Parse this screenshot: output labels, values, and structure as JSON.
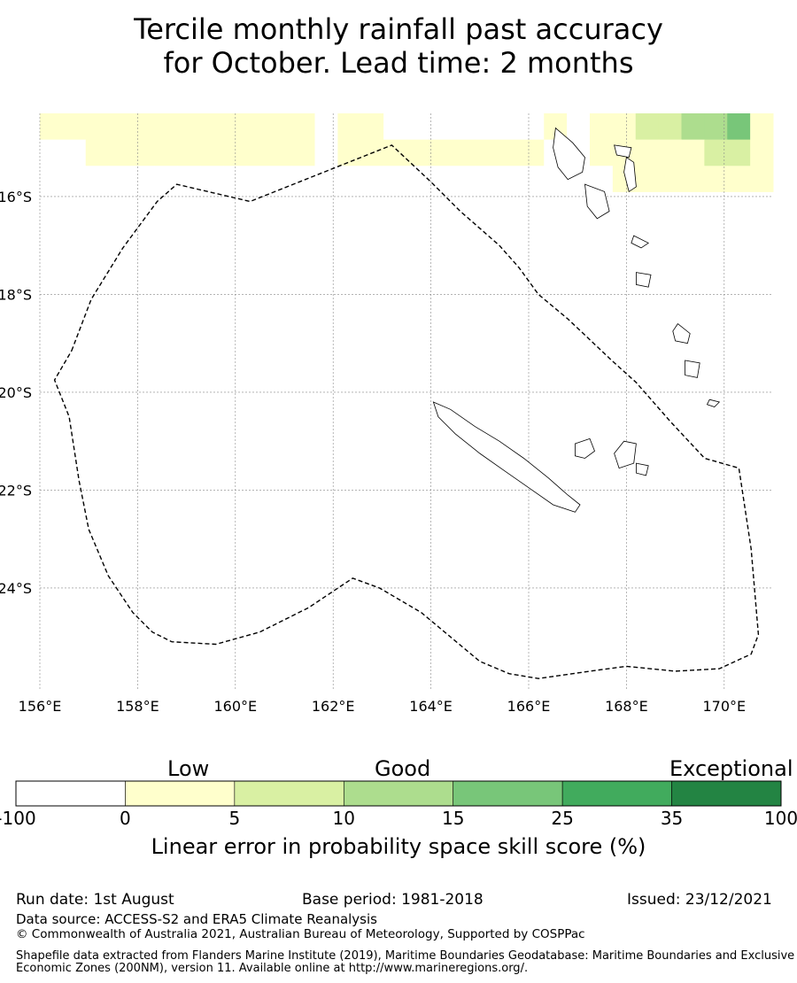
{
  "title": {
    "line1": "Tercile monthly rainfall past accuracy",
    "line2": "for October. Lead time: 2 months"
  },
  "map": {
    "lon_ticks": [
      "156°E",
      "158°E",
      "160°E",
      "162°E",
      "164°E",
      "166°E",
      "168°E",
      "170°E"
    ],
    "lat_ticks": [
      "16°S",
      "18°S",
      "20°S",
      "22°S",
      "24°S"
    ],
    "lon_range": [
      156,
      171
    ],
    "lat_range": [
      -14.3,
      -26.1
    ],
    "gridlines": true,
    "boundary": "dashed black maritime zone outline",
    "grid_code_legend": "0 = below 0, 1 = 0–5, 2 = 5–10, 3 = 10–15, 4 = 15–25",
    "skill_grid": [
      "11111111111101100000001011223341",
      "00111111111101111111110011111221",
      "00000000000000000000000001111111",
      "00000000000000000000000000000000",
      "00000000000000000000000000000000",
      "00000000000000000000000000000000",
      "00000000000000000000000000000000",
      "00000000000000000000000000000000",
      "00000000000000000000000000000000",
      "00000000000000000000000000000000",
      "00000000000000000000000000000000",
      "00000000000000000000000000000000",
      "00000000000000000000000000000000",
      "00000000000000000000000000000000",
      "00000000000000000000000000000000",
      "00000000000000000000000000000000",
      "00000000000000000000000000000000",
      "00000000000000000000000000000000",
      "00000000000000000000000000000000",
      "00000000000000000000000000000000",
      "00000000000000000000000000000000",
      "00000000000000000000000000000000"
    ]
  },
  "colorbar": {
    "categories": [
      "Low",
      "Good",
      "Exceptional"
    ],
    "tick_labels": [
      "-100",
      "0",
      "5",
      "10",
      "15",
      "25",
      "35",
      "100"
    ],
    "colors": [
      "#ffffff",
      "#ffffcc",
      "#d9f0a3",
      "#addd8e",
      "#78c679",
      "#41ab5d",
      "#238443"
    ],
    "label": "Linear error in probability space skill score (%)"
  },
  "footer": {
    "run_date": "Run date: 1st August",
    "base_period": "Base period: 1981-2018",
    "issued": "Issued: 23/12/2021",
    "data_source": "Data source: ACCESS-S2 and ERA5 Climate Reanalysis",
    "copyright": "© Commonwealth of Australia 2021, Australian Bureau of Meteorology, Supported by COSPPac",
    "shapefile_note": "Shapefile data extracted from Flanders Marine Institute (2019), Maritime Boundaries Geodatabase: Maritime Boundaries and Exclusive Economic Zones (200NM), version 11. Available online at http://www.marineregions.org/."
  }
}
